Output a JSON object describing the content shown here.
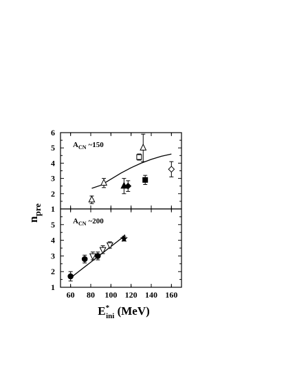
{
  "chart_data": [
    {
      "type": "scatter",
      "panel": "top",
      "label_prefix": "A",
      "label_sub": "CN",
      "label_value": "~150",
      "xlim": [
        50,
        170
      ],
      "ylim": [
        1,
        6
      ],
      "xticks": [
        60,
        80,
        100,
        120,
        140,
        160
      ],
      "yticks": [
        1,
        2,
        3,
        4,
        5,
        6
      ],
      "series": [
        {
          "marker": "triangle-open",
          "points": [
            {
              "x": 81,
              "y": 1.6,
              "err": 0.25
            },
            {
              "x": 93,
              "y": 2.7,
              "err": 0.3
            },
            {
              "x": 132,
              "y": 5.0,
              "err": 0.9
            }
          ]
        },
        {
          "marker": "triangle-filled",
          "points": [
            {
              "x": 113,
              "y": 2.5,
              "err": 0.5
            }
          ]
        },
        {
          "marker": "diamond-filled",
          "points": [
            {
              "x": 117,
              "y": 2.5,
              "err": 0.35
            }
          ]
        },
        {
          "marker": "square-open",
          "points": [
            {
              "x": 128,
              "y": 4.4,
              "err": 0.2
            }
          ]
        },
        {
          "marker": "square-filled",
          "points": [
            {
              "x": 134,
              "y": 2.9,
              "err": 0.3
            }
          ]
        },
        {
          "marker": "diamond-open",
          "points": [
            {
              "x": 160,
              "y": 3.6,
              "err": 0.5
            }
          ]
        }
      ],
      "curve": [
        {
          "x": 81,
          "y": 2.35
        },
        {
          "x": 90,
          "y": 2.55
        },
        {
          "x": 100,
          "y": 2.95
        },
        {
          "x": 110,
          "y": 3.35
        },
        {
          "x": 120,
          "y": 3.7
        },
        {
          "x": 130,
          "y": 4.0
        },
        {
          "x": 140,
          "y": 4.25
        },
        {
          "x": 150,
          "y": 4.45
        },
        {
          "x": 160,
          "y": 4.6
        }
      ]
    },
    {
      "type": "scatter",
      "panel": "bottom",
      "label_prefix": "A",
      "label_sub": "CN",
      "label_value": "~200",
      "xlim": [
        50,
        170
      ],
      "ylim": [
        1,
        6
      ],
      "xticks": [
        60,
        80,
        100,
        120,
        140,
        160
      ],
      "xtick_labels": [
        "60",
        "80",
        "100",
        "120",
        "140",
        "160"
      ],
      "yticks": [
        1,
        2,
        3,
        4,
        5
      ],
      "series": [
        {
          "marker": "circle-filled",
          "points": [
            {
              "x": 60,
              "y": 1.7,
              "err": 0.3
            },
            {
              "x": 74,
              "y": 2.8,
              "err": 0.25
            },
            {
              "x": 87,
              "y": 3.0,
              "err": 0.25
            }
          ]
        },
        {
          "marker": "triangle-down-open",
          "points": [
            {
              "x": 82,
              "y": 3.0,
              "err": 0.25
            },
            {
              "x": 92,
              "y": 3.4,
              "err": 0.25
            },
            {
              "x": 99,
              "y": 3.7,
              "err": 0.2
            }
          ]
        },
        {
          "marker": "star-filled",
          "points": [
            {
              "x": 113,
              "y": 4.1,
              "err": 0.15
            }
          ]
        }
      ],
      "curve": [
        {
          "x": 60,
          "y": 1.6
        },
        {
          "x": 70,
          "y": 2.1
        },
        {
          "x": 80,
          "y": 2.6
        },
        {
          "x": 90,
          "y": 3.1
        },
        {
          "x": 100,
          "y": 3.6
        },
        {
          "x": 110,
          "y": 4.1
        },
        {
          "x": 114,
          "y": 4.35
        }
      ]
    }
  ],
  "axes": {
    "ylabel_main": "n",
    "ylabel_sub": "pre",
    "xlabel_main": "E",
    "xlabel_sup": "*",
    "xlabel_sub": "ini",
    "xlabel_unit": " (MeV)"
  }
}
